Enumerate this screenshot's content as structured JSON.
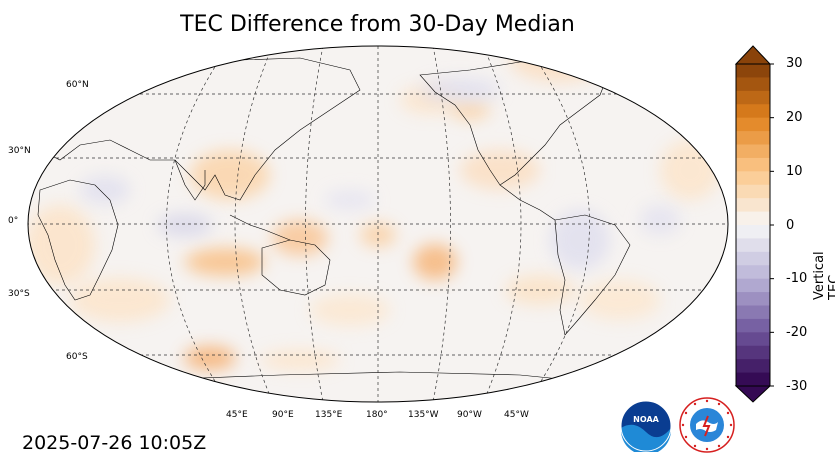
{
  "title": "TEC Difference from 30-Day Median",
  "timestamp": "2025-07-26 10:05Z",
  "colorbar": {
    "label": "Vertical TEC (TECU)",
    "min": -30,
    "max": 30,
    "ticks": [
      "30",
      "20",
      "10",
      "0",
      "-10",
      "-20",
      "-30"
    ]
  },
  "latitude_labels": [
    "60°N",
    "30°N",
    "0°",
    "30°S",
    "60°S"
  ],
  "longitude_labels": [
    "45°E",
    "90°E",
    "135°E",
    "180°",
    "135°W",
    "90°W",
    "45°W"
  ],
  "logos": {
    "noaa": "NOAA",
    "nws": "NATIONAL WEATHER SERVICE"
  }
}
